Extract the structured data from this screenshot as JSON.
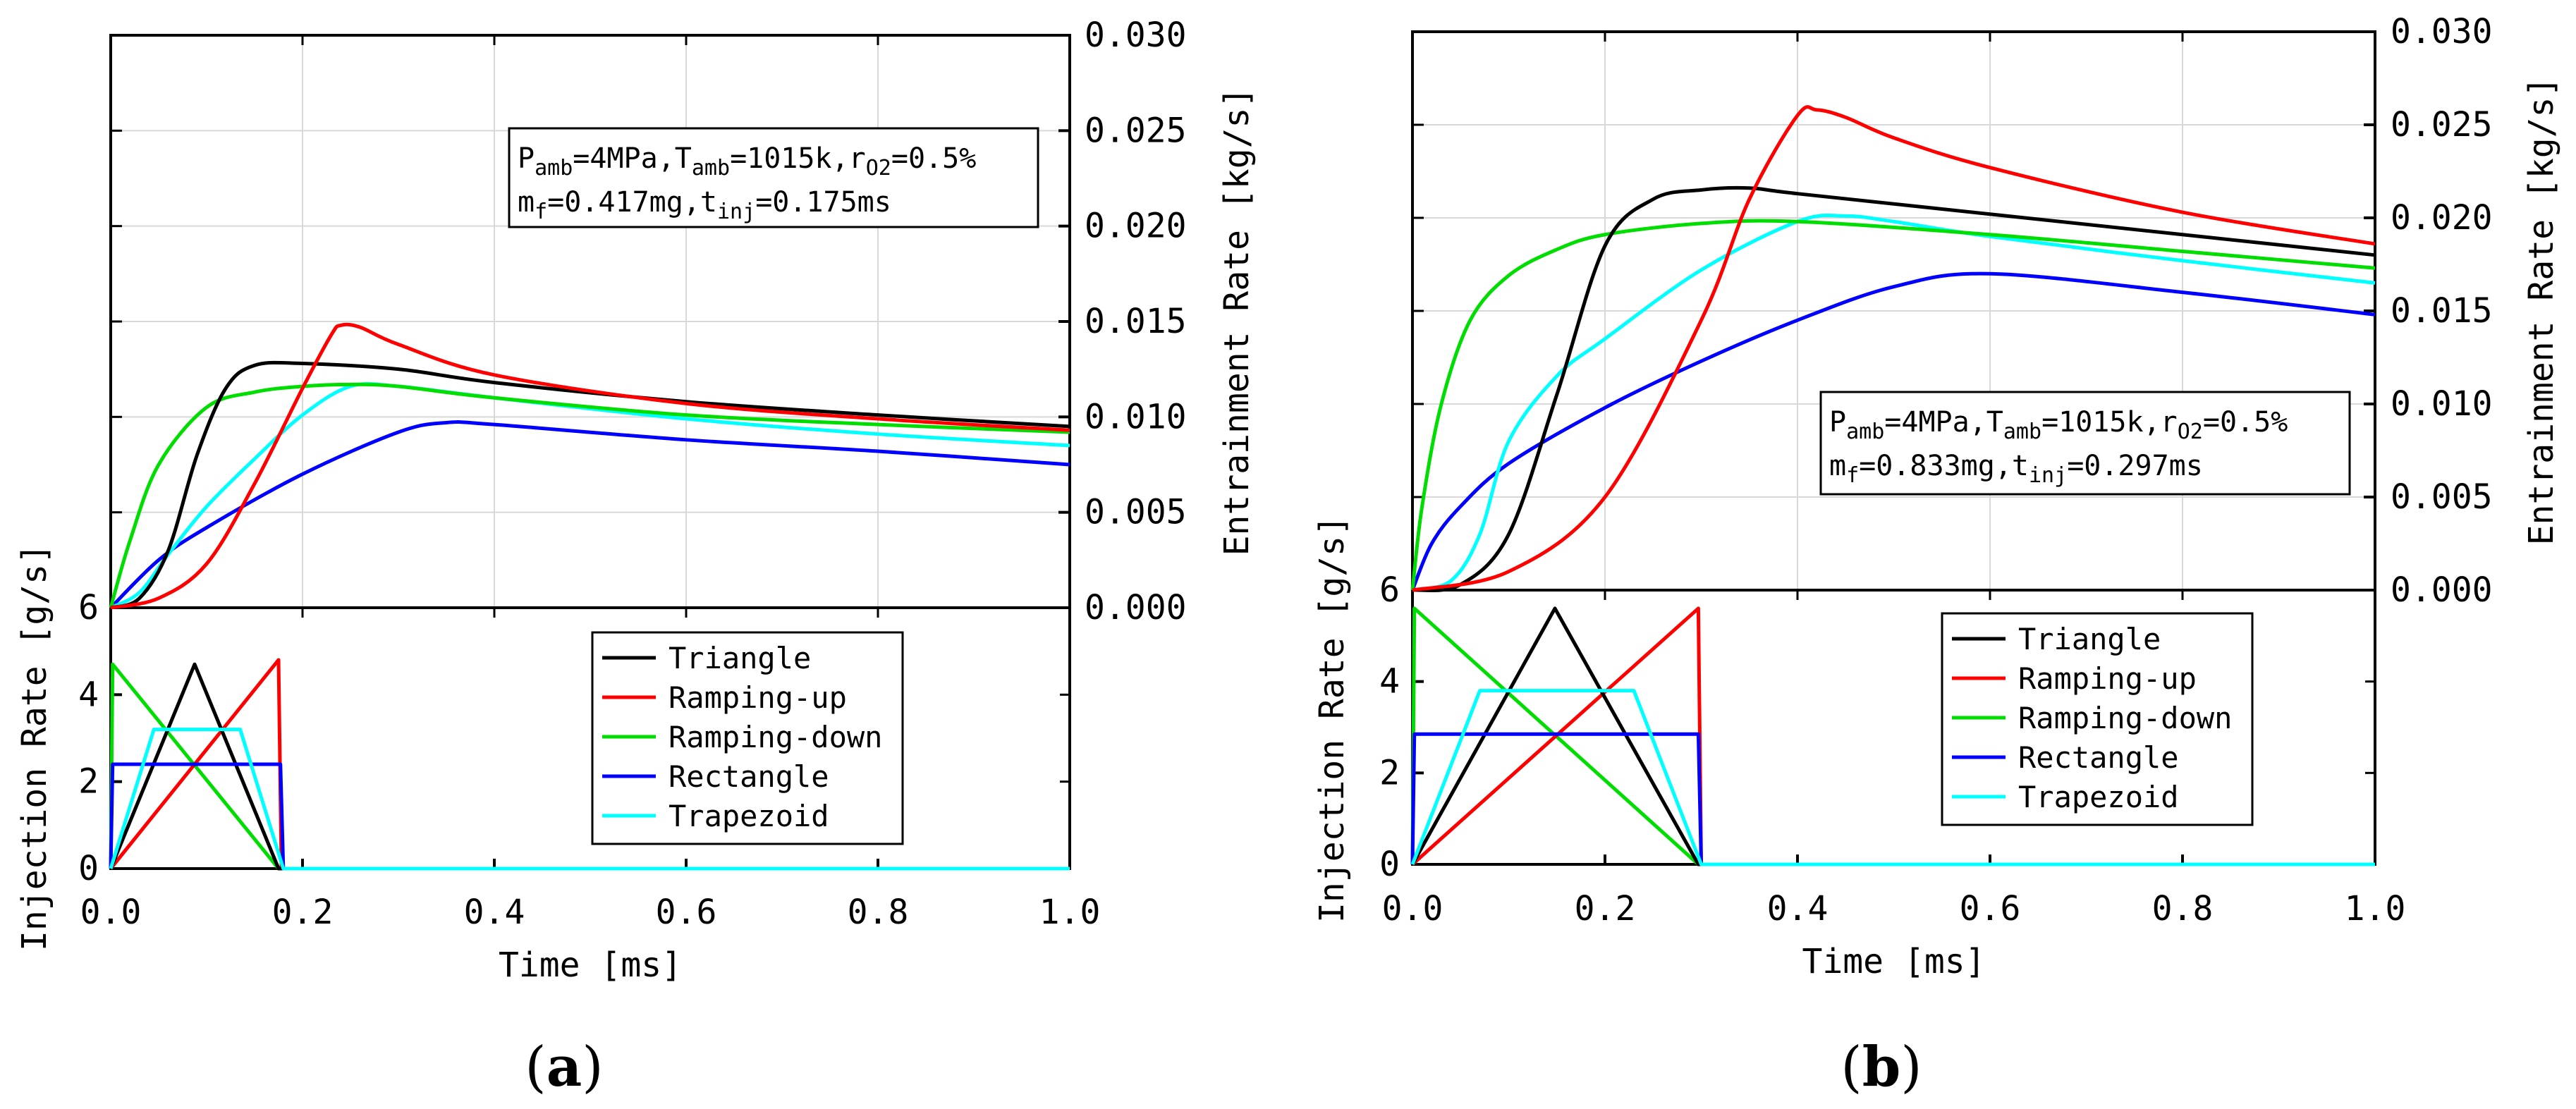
{
  "figure": {
    "panel_labels": [
      "(a)",
      "(b)"
    ]
  },
  "legend": {
    "entries": [
      {
        "name": "Triangle",
        "color": "#000000"
      },
      {
        "name": "Ramping-up",
        "color": "#ff0000"
      },
      {
        "name": "Ramping-down",
        "color": "#00dd00"
      },
      {
        "name": "Rectangle",
        "color": "#0000ff"
      },
      {
        "name": "Trapezoid",
        "color": "#00ffff"
      }
    ]
  },
  "chart_data": [
    {
      "type": "line",
      "panel": "(a)",
      "xlabel": "Time [ms]",
      "xlim": [
        0.0,
        1.0
      ],
      "xticks": [
        "0.0",
        "0.2",
        "0.4",
        "0.6",
        "0.8",
        "1.0"
      ],
      "annotation": {
        "line1": {
          "P": "P",
          "P_sub": "amb",
          "P_val": "=4MPa,",
          "T": "T",
          "T_sub": "amb",
          "T_val": "=1015k,",
          "r": "r",
          "r_sub": "O2",
          "r_val": "=0.5%"
        },
        "line2": {
          "m": "m",
          "m_sub": "f",
          "m_val": "=0.417mg,",
          "t": "t",
          "t_sub": "inj",
          "t_val": "=0.175ms"
        }
      },
      "entrainment": {
        "ylabel": "Entrainment Rate [kg/s]",
        "ylim": [
          0.0,
          0.03
        ],
        "yticks": [
          "0.000",
          "0.005",
          "0.010",
          "0.015",
          "0.020",
          "0.025",
          "0.030"
        ],
        "series": [
          {
            "name": "Triangle",
            "x": [
              0,
              0.03,
              0.06,
              0.09,
              0.12,
              0.15,
              0.2,
              0.3,
              0.4,
              0.6,
              0.8,
              1.0
            ],
            "y": [
              0,
              0.0005,
              0.003,
              0.008,
              0.0115,
              0.0127,
              0.0128,
              0.0125,
              0.0118,
              0.0108,
              0.0101,
              0.0095
            ]
          },
          {
            "name": "Ramping-up",
            "x": [
              0,
              0.05,
              0.1,
              0.15,
              0.2,
              0.23,
              0.24,
              0.26,
              0.3,
              0.4,
              0.6,
              0.8,
              1.0
            ],
            "y": [
              0,
              0.0005,
              0.0023,
              0.0065,
              0.0115,
              0.0143,
              0.0148,
              0.0147,
              0.0138,
              0.0122,
              0.0107,
              0.0099,
              0.0093
            ]
          },
          {
            "name": "Ramping-down",
            "x": [
              0,
              0.02,
              0.05,
              0.1,
              0.15,
              0.2,
              0.25,
              0.3,
              0.4,
              0.6,
              0.8,
              1.0
            ],
            "y": [
              0,
              0.0035,
              0.0075,
              0.0105,
              0.0113,
              0.0116,
              0.0117,
              0.0116,
              0.011,
              0.0101,
              0.0096,
              0.0092
            ]
          },
          {
            "name": "Rectangle",
            "x": [
              0,
              0.05,
              0.1,
              0.2,
              0.3,
              0.35,
              0.4,
              0.6,
              0.8,
              1.0
            ],
            "y": [
              0,
              0.0025,
              0.0042,
              0.007,
              0.0092,
              0.0097,
              0.0096,
              0.0088,
              0.0082,
              0.0075
            ]
          },
          {
            "name": "Trapezoid",
            "x": [
              0,
              0.03,
              0.06,
              0.1,
              0.15,
              0.2,
              0.25,
              0.3,
              0.4,
              0.6,
              0.8,
              1.0
            ],
            "y": [
              0,
              0.0008,
              0.0028,
              0.0053,
              0.0078,
              0.0101,
              0.0116,
              0.0116,
              0.011,
              0.0099,
              0.0091,
              0.0085
            ]
          }
        ]
      },
      "injection": {
        "ylabel": "Injection Rate [g/s]",
        "ylim": [
          0,
          6
        ],
        "yticks": [
          "0",
          "2",
          "4",
          "6"
        ],
        "series": [
          {
            "name": "Triangle",
            "x": [
              0,
              0.0875,
              0.175,
              1.0
            ],
            "y": [
              0,
              4.7,
              0,
              0
            ]
          },
          {
            "name": "Ramping-up",
            "x": [
              0,
              0.175,
              0.178,
              1.0
            ],
            "y": [
              0,
              4.8,
              0,
              0
            ]
          },
          {
            "name": "Ramping-down",
            "x": [
              0,
              0.002,
              0.175,
              1.0
            ],
            "y": [
              0,
              4.7,
              0,
              0
            ]
          },
          {
            "name": "Rectangle",
            "x": [
              0,
              0.002,
              0.177,
              0.18,
              1.0
            ],
            "y": [
              0,
              2.4,
              2.4,
              0,
              0
            ]
          },
          {
            "name": "Trapezoid",
            "x": [
              0,
              0.045,
              0.135,
              0.18,
              1.0
            ],
            "y": [
              0,
              3.2,
              3.2,
              0,
              0
            ]
          }
        ]
      }
    },
    {
      "type": "line",
      "panel": "(b)",
      "xlabel": "Time [ms]",
      "xlim": [
        0.0,
        1.0
      ],
      "xticks": [
        "0.0",
        "0.2",
        "0.4",
        "0.6",
        "0.8",
        "1.0"
      ],
      "annotation": {
        "line1": {
          "P": "P",
          "P_sub": "amb",
          "P_val": "=4MPa,",
          "T": "T",
          "T_sub": "amb",
          "T_val": "=1015k,",
          "r": "r",
          "r_sub": "O2",
          "r_val": "=0.5%"
        },
        "line2": {
          "m": "m",
          "m_sub": "f",
          "m_val": "=0.833mg,",
          "t": "t",
          "t_sub": "inj",
          "t_val": "=0.297ms"
        }
      },
      "entrainment": {
        "ylabel": "Entrainment Rate [kg/s]",
        "ylim": [
          0.0,
          0.03
        ],
        "yticks": [
          "0.000",
          "0.005",
          "0.010",
          "0.015",
          "0.020",
          "0.025",
          "0.030"
        ],
        "series": [
          {
            "name": "Triangle",
            "x": [
              0,
              0.05,
              0.1,
              0.15,
              0.2,
              0.25,
              0.3,
              0.35,
              0.4,
              0.6,
              0.8,
              1.0
            ],
            "y": [
              0,
              0.0003,
              0.003,
              0.0105,
              0.0185,
              0.021,
              0.0215,
              0.0216,
              0.0213,
              0.0202,
              0.0191,
              0.018
            ]
          },
          {
            "name": "Ramping-up",
            "x": [
              0,
              0.1,
              0.2,
              0.3,
              0.35,
              0.4,
              0.42,
              0.45,
              0.5,
              0.6,
              0.8,
              1.0
            ],
            "y": [
              0,
              0.001,
              0.005,
              0.0145,
              0.021,
              0.0255,
              0.0258,
              0.0254,
              0.0243,
              0.0227,
              0.0203,
              0.0186
            ]
          },
          {
            "name": "Ramping-down",
            "x": [
              0,
              0.01,
              0.03,
              0.06,
              0.1,
              0.15,
              0.2,
              0.3,
              0.4,
              0.6,
              0.8,
              1.0
            ],
            "y": [
              0,
              0.0045,
              0.01,
              0.0145,
              0.0169,
              0.0183,
              0.0191,
              0.0197,
              0.0198,
              0.0191,
              0.0182,
              0.0173
            ]
          },
          {
            "name": "Rectangle",
            "x": [
              0,
              0.02,
              0.05,
              0.1,
              0.2,
              0.3,
              0.4,
              0.5,
              0.6,
              0.8,
              1.0
            ],
            "y": [
              0,
              0.0025,
              0.0045,
              0.0068,
              0.0098,
              0.0123,
              0.0145,
              0.0163,
              0.017,
              0.016,
              0.0148
            ]
          },
          {
            "name": "Trapezoid",
            "x": [
              0,
              0.04,
              0.07,
              0.1,
              0.15,
              0.2,
              0.3,
              0.4,
              0.45,
              0.5,
              0.6,
              0.8,
              1.0
            ],
            "y": [
              0,
              0.0005,
              0.003,
              0.008,
              0.0115,
              0.0135,
              0.0172,
              0.0198,
              0.0201,
              0.0198,
              0.019,
              0.0177,
              0.0165
            ]
          }
        ]
      },
      "injection": {
        "ylabel": "Injection Rate [g/s]",
        "ylim": [
          0,
          6
        ],
        "yticks": [
          "0",
          "2",
          "4",
          "6"
        ],
        "series": [
          {
            "name": "Triangle",
            "x": [
              0,
              0.148,
              0.297,
              1.0
            ],
            "y": [
              0,
              5.6,
              0,
              0
            ]
          },
          {
            "name": "Ramping-up",
            "x": [
              0,
              0.297,
              0.3,
              1.0
            ],
            "y": [
              0,
              5.6,
              0,
              0
            ]
          },
          {
            "name": "Ramping-down",
            "x": [
              0,
              0.002,
              0.297,
              1.0
            ],
            "y": [
              0,
              5.6,
              0,
              0
            ]
          },
          {
            "name": "Rectangle",
            "x": [
              0,
              0.002,
              0.297,
              0.3,
              1.0
            ],
            "y": [
              0,
              2.85,
              2.85,
              0,
              0
            ]
          },
          {
            "name": "Trapezoid",
            "x": [
              0,
              0.07,
              0.23,
              0.3,
              1.0
            ],
            "y": [
              0,
              3.8,
              3.8,
              0,
              0
            ]
          }
        ]
      }
    }
  ]
}
